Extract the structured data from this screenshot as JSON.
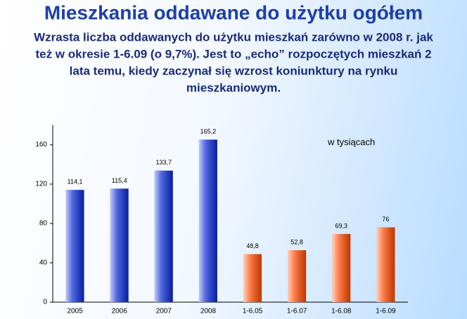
{
  "chart_data": {
    "type": "bar",
    "title": "Mieszkania oddawane do użytku ogółem",
    "subtitle": [
      "Wzrasta liczba oddawanych do użytku mieszkań  zarówno w 2008 r. jak",
      "też w  okresie 1-6.09 (o 9,7%). Jest  to „echo” rozpoczętych mieszkań 2",
      "lata temu, kiedy zaczynał się wzrost koniunktury na rynku",
      "mieszkaniowym."
    ],
    "annotation": "w tysiącach",
    "categories": [
      "2005",
      "2006",
      "2007",
      "2008",
      "1-6.05",
      "1-6.07",
      "1-6.08",
      "1-6.09"
    ],
    "values": [
      114.1,
      115.4,
      133.7,
      165.2,
      48.8,
      52.8,
      69.3,
      76
    ],
    "value_labels": [
      "114,1",
      "115,4",
      "133,7",
      "165,2",
      "48,8",
      "52,8",
      "69,3",
      "76"
    ],
    "colors": [
      "#0a2bd6",
      "#0a2bd6",
      "#0a2bd6",
      "#0a2bd6",
      "#ff4a00",
      "#ff4a00",
      "#ff4a00",
      "#ff4a00"
    ],
    "ylim": [
      0,
      180
    ],
    "yticks": [
      0,
      40,
      80,
      120,
      160
    ]
  }
}
